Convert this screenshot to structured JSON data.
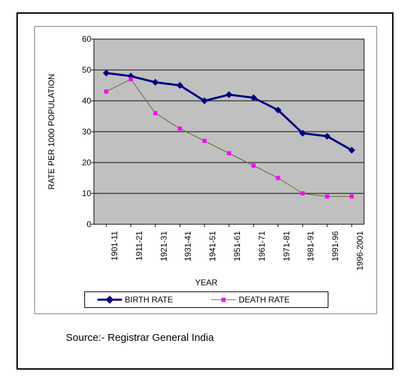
{
  "chart": {
    "type": "line",
    "background_color": "#ffffff",
    "plot_background_color": "#c0c0c0",
    "grid_color": "#000000",
    "border_color": "#000000",
    "xlabel": "YEAR",
    "ylabel": "RATE PER 1000 POPULATION",
    "label_fontsize": 12,
    "tick_fontsize": 12,
    "ylim": [
      0,
      60
    ],
    "ytick_step": 10,
    "yticks": [
      0,
      10,
      20,
      30,
      40,
      50,
      60
    ],
    "categories": [
      "1901-11",
      "1911-21",
      "1921-31",
      "1931-41",
      "1941-51",
      "1951-61",
      "1961-71",
      "1971-81",
      "1981-91",
      "1991-96",
      "1996-2001"
    ],
    "series": [
      {
        "name": "BIRTH RATE",
        "color": "#000080",
        "line_width": 3,
        "marker": "diamond",
        "marker_size": 10,
        "values": [
          49,
          48,
          46,
          45,
          40,
          42,
          41,
          37,
          29.5,
          28.5,
          24
        ]
      },
      {
        "name": "DEATH RATE",
        "color": "#ff00ff",
        "line_color": "#666633",
        "line_width": 1,
        "marker": "square",
        "marker_size": 6,
        "values": [
          43,
          47,
          36,
          31,
          27,
          23,
          19,
          15,
          10,
          9,
          9
        ]
      }
    ],
    "legend": {
      "position": "bottom",
      "items": [
        {
          "label": "BIRTH RATE"
        },
        {
          "label": "DEATH RATE"
        }
      ]
    }
  },
  "source": "Source:- Registrar General India"
}
